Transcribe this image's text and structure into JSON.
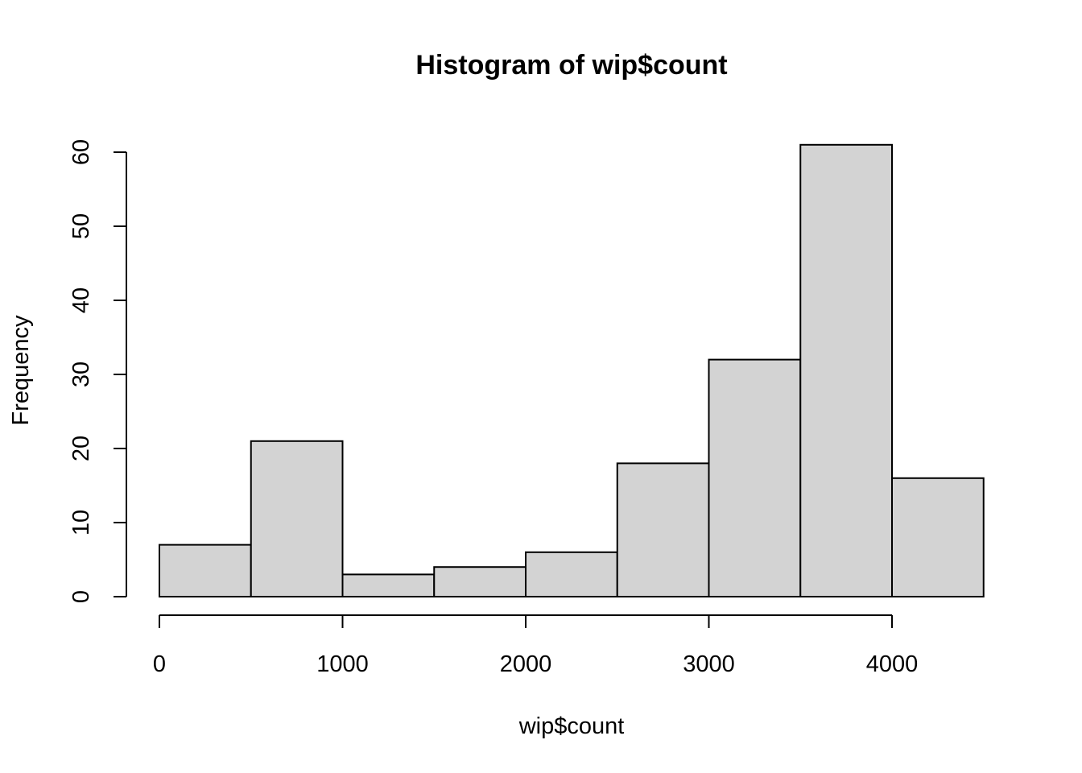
{
  "colors": {
    "bar_fill": "#d3d3d3",
    "bar_stroke": "#000000",
    "background": "#ffffff"
  },
  "chart_data": {
    "type": "bar",
    "title": "Histogram of wip$count",
    "xlabel": "wip$count",
    "ylabel": "Frequency",
    "bins": [
      {
        "start": 0,
        "end": 500,
        "count": 7
      },
      {
        "start": 500,
        "end": 1000,
        "count": 21
      },
      {
        "start": 1000,
        "end": 1500,
        "count": 3
      },
      {
        "start": 1500,
        "end": 2000,
        "count": 4
      },
      {
        "start": 2000,
        "end": 2500,
        "count": 6
      },
      {
        "start": 2500,
        "end": 3000,
        "count": 18
      },
      {
        "start": 3000,
        "end": 3500,
        "count": 32
      },
      {
        "start": 3500,
        "end": 4000,
        "count": 61
      },
      {
        "start": 4000,
        "end": 4500,
        "count": 16
      }
    ],
    "xlim": [
      0,
      4500
    ],
    "ylim": [
      0,
      60
    ],
    "x_ticks": [
      0,
      1000,
      2000,
      3000,
      4000
    ],
    "y_ticks": [
      0,
      10,
      20,
      30,
      40,
      50,
      60
    ],
    "grid": false,
    "legend": "none"
  }
}
